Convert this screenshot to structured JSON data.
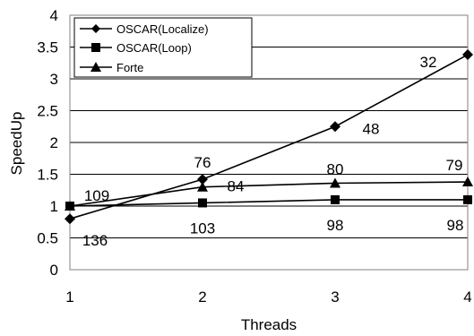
{
  "chart_data": {
    "type": "line",
    "title": "",
    "xlabel": "Threads",
    "ylabel": "SpeedUp",
    "x": [
      1,
      2,
      3,
      4
    ],
    "x_tick_labels": [
      "1",
      "2",
      "3",
      "4"
    ],
    "ylim": [
      0,
      4
    ],
    "y_tick_labels": [
      "0",
      "0.5",
      "1",
      "1.5",
      "2",
      "2.5",
      "3",
      "3.5",
      "4"
    ],
    "grid": "horizontal",
    "legend_position": "top-left",
    "series": [
      {
        "name": "OSCAR(Localize)",
        "marker": "diamond",
        "values": [
          0.8,
          1.42,
          2.25,
          3.38
        ]
      },
      {
        "name": "OSCAR(Loop)",
        "marker": "square",
        "values": [
          1.0,
          1.05,
          1.1,
          1.1
        ]
      },
      {
        "name": "Forte",
        "marker": "triangle",
        "values": [
          1.0,
          1.3,
          1.36,
          1.38
        ]
      }
    ],
    "annotations": [
      "136",
      "109",
      "76",
      "84",
      "103",
      "48",
      "80",
      "98",
      "32",
      "79",
      "98"
    ]
  }
}
